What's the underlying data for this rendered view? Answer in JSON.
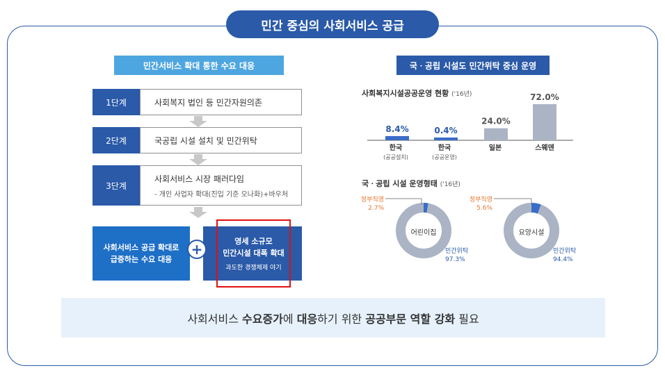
{
  "header": {
    "title": "민간 중심의 사회서비스 공급"
  },
  "left": {
    "title": "민간서비스 확대 통한 수요 대응",
    "stages": [
      {
        "num": "1단계",
        "text": "사회복지 법인 등 민간자원의존",
        "sub": ""
      },
      {
        "num": "2단계",
        "text": "국공립 시설 설치 및 민간위탁",
        "sub": ""
      },
      {
        "num": "3단계",
        "text": "사회서비스 시장 패러다임",
        "sub": "- 개인 사업자 확대(진입 기준 오나화)+바우처"
      }
    ],
    "bottom_left": {
      "line1": "사회서비스 공급 확대로",
      "line2": "급증하는 수요 대응"
    },
    "plus": "+",
    "bottom_right": {
      "line1": "영세 소규모",
      "line2": "민간시설 대폭 확대",
      "line3": "과도한 경쟁체제 야기"
    }
  },
  "right": {
    "title": "국ㆍ공립 시설도 민간위탁 중심 운영",
    "bar_heading": "사회복지시설공공운영 현황",
    "bar_year": "('16년)",
    "donut_heading": "국ㆍ공립 시설 운영형태",
    "donut_year": "('16년)"
  },
  "chart_data": [
    {
      "type": "bar",
      "title": "사회복지시설공공운영 현황",
      "categories": [
        "한국",
        "한국",
        "일본",
        "스웨덴"
      ],
      "category_sub": [
        "(공공설치)",
        "(공공운영)",
        "",
        ""
      ],
      "values": [
        8.4,
        0.4,
        24.0,
        72.0
      ],
      "value_labels": [
        "8.4%",
        "0.4%",
        "24.0%",
        "72.0%"
      ],
      "colors": [
        "#3a6cc8",
        "#3a6cc8",
        "#aab4c4",
        "#aab4c4"
      ],
      "ylim": [
        0,
        72
      ]
    },
    {
      "type": "pie",
      "center_label": "어린이집",
      "slices": [
        {
          "name": "정부직영",
          "value": 2.7,
          "label": "2.7%",
          "color": "#3a6cc8"
        },
        {
          "name": "민간위탁",
          "value": 97.3,
          "label": "97.3%",
          "color": "#aab4c4"
        }
      ]
    },
    {
      "type": "pie",
      "center_label": "요양시설",
      "slices": [
        {
          "name": "정부직영",
          "value": 5.6,
          "label": "5.6%",
          "color": "#3a6cc8"
        },
        {
          "name": "민간위탁",
          "value": 94.4,
          "label": "94.4%",
          "color": "#aab4c4"
        }
      ]
    }
  ],
  "conclusion": {
    "p1": "사회서비스 ",
    "b1": "수요증가",
    "p2": "에 ",
    "b2": "대응",
    "p3": "하기 위한 ",
    "b3": "공공부문 역할 강화",
    "p4": " 필요"
  }
}
